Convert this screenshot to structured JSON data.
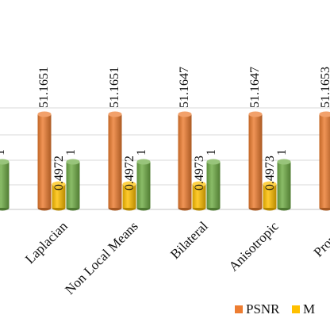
{
  "chart_data": {
    "type": "bar",
    "style": "3d-cylinder",
    "categories": [
      "",
      "Laplacian",
      "Non Local Means",
      "Bilateral",
      "Anisotropic",
      "Propose"
    ],
    "series": [
      {
        "name": "PSNR",
        "color": "#ED7D31",
        "values": [
          null,
          51.1651,
          51.1651,
          51.1647,
          51.1647,
          51.1653
        ],
        "labels": [
          "",
          "51.1651",
          "51.1651",
          "51.1647",
          "51.1647",
          "51.1653"
        ]
      },
      {
        "name": "MSE",
        "color": "#FFC000",
        "values": [
          null,
          0.4972,
          0.4972,
          0.4973,
          0.4973,
          null
        ],
        "labels": [
          "",
          "0.4972",
          "0.4972",
          "0.4973",
          "0.4973",
          ""
        ]
      },
      {
        "name": "",
        "color": "#70AD47",
        "values": [
          1,
          1,
          1,
          1,
          1,
          null
        ],
        "labels": [
          "1",
          "1",
          "1",
          "1",
          "1",
          ""
        ]
      }
    ],
    "legend": {
      "position": "bottom",
      "entries": [
        "PSNR",
        "M"
      ]
    },
    "grid": true,
    "title": "",
    "xlabel": "",
    "ylabel": ""
  }
}
